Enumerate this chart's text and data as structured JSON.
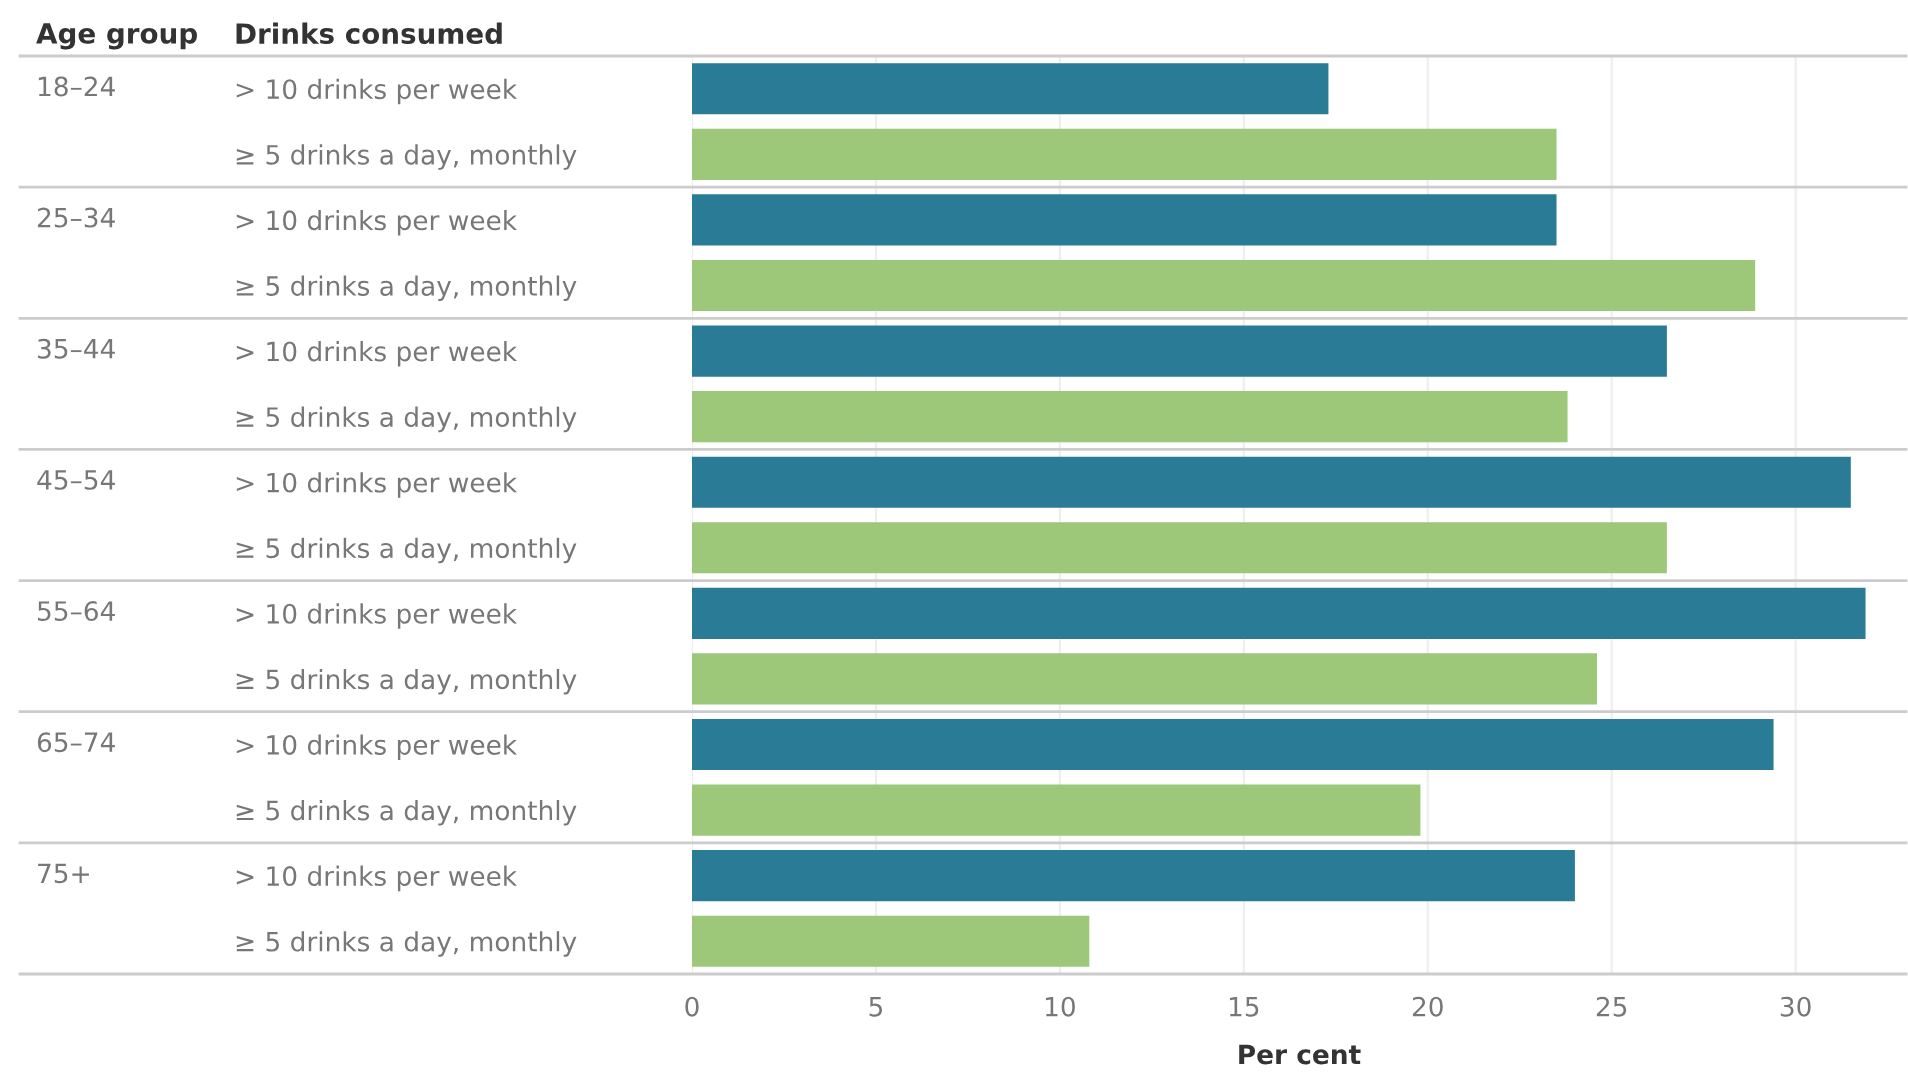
{
  "chart_data": {
    "type": "bar",
    "orientation": "horizontal",
    "categories": [
      "> 10 drinks per week",
      "≥ 5 drinks a day, monthly",
      "> 10 drinks per week",
      "≥ 5 drinks a day, monthly",
      "> 10 drinks per week",
      "≥ 5 drinks a day, monthly",
      "> 10 drinks per week",
      "≥ 5 drinks a day, monthly",
      "> 10 drinks per week",
      "≥ 5 drinks a day, monthly",
      "> 10 drinks per week",
      "≥ 5 drinks a day, monthly",
      "> 10 drinks per week",
      "≥ 5 drinks a day, monthly"
    ],
    "values": [
      17.3,
      23.5,
      23.5,
      28.9,
      26.5,
      23.8,
      31.5,
      26.5,
      31.9,
      24.6,
      29.4,
      19.8,
      24.0,
      10.8
    ],
    "colors": [
      "#2a7b96",
      "#9dc779",
      "#2a7b96",
      "#9dc779",
      "#2a7b96",
      "#9dc779",
      "#2a7b96",
      "#9dc779",
      "#2a7b96",
      "#9dc779",
      "#2a7b96",
      "#9dc779",
      "#2a7b96",
      "#9dc779"
    ],
    "xlabel": "Per cent",
    "xlim": [
      0,
      33
    ],
    "xticks": [
      0,
      5,
      10,
      15,
      20,
      25,
      30
    ],
    "grid": "x",
    "annotations": [
      "Age group",
      "Drinks consumed",
      "18–24",
      "25–34",
      "35–44",
      "45–54",
      "55–64",
      "65–74",
      "75+"
    ]
  }
}
